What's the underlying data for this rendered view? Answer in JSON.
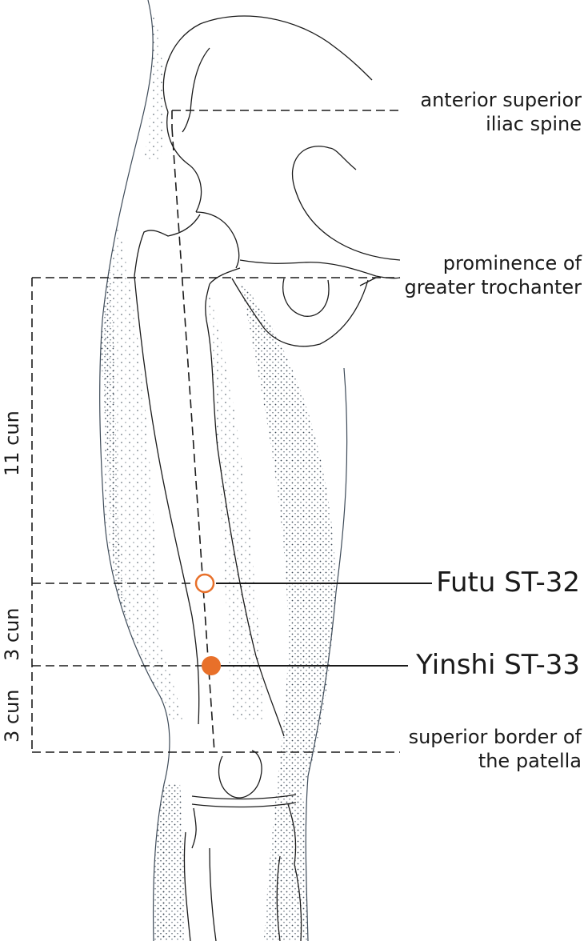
{
  "landmarks": {
    "asis": {
      "line1": "anterior superior",
      "line2": "iliac spine"
    },
    "trochanter": {
      "line1": "prominence of",
      "line2": "greater trochanter"
    },
    "patella": {
      "line1": "superior border of",
      "line2": "the patella"
    }
  },
  "points": {
    "futu": {
      "label": "Futu ST-32",
      "marker": "hollow-circle"
    },
    "yinshi": {
      "label": "Yinshi ST-33",
      "marker": "filled-circle"
    }
  },
  "measurements": {
    "upper": "11 cun",
    "middle": "3 cun",
    "lower": "3 cun"
  },
  "colors": {
    "accent": "#e8702a",
    "stipple": "#3d4a58",
    "line": "#1a1a1a"
  }
}
